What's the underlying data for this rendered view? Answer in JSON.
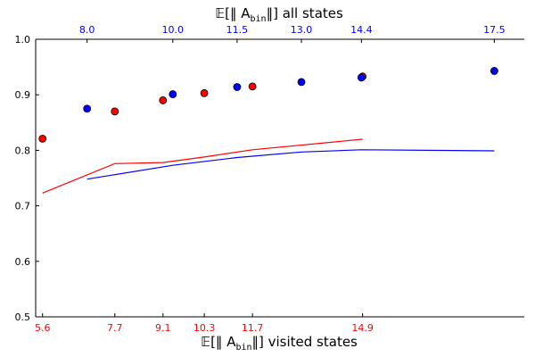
{
  "chart_data": {
    "type": "scatter",
    "colors": {
      "red": "#ff0000",
      "blue": "#0000ff",
      "axis": "#000000"
    },
    "y_axis": {
      "lim": [
        0.5,
        1.0
      ],
      "ticks": [
        0.5,
        0.6,
        0.7,
        0.8,
        0.9,
        1.0
      ],
      "tick_labels": [
        "0.5",
        "0.6",
        "0.7",
        "0.8",
        "0.9",
        "1.0"
      ]
    },
    "x_bottom": {
      "label_prefix": "𝔼[‖ A",
      "label_sub": "bin",
      "label_suffix": "‖] visited states",
      "lim": [
        5.4,
        19.6
      ],
      "ticks": [
        5.6,
        7.7,
        9.1,
        10.3,
        11.7,
        14.9
      ],
      "tick_labels": [
        "5.6",
        "7.7",
        "9.1",
        "10.3",
        "11.7",
        "14.9"
      ],
      "color": "#ff0000"
    },
    "x_top": {
      "label_prefix": "𝔼[‖ A",
      "label_sub": "bin",
      "label_suffix": "‖] all states",
      "lim": [
        6.8,
        18.2
      ],
      "ticks": [
        8.0,
        10.0,
        11.5,
        13.0,
        14.4,
        17.5
      ],
      "tick_labels": [
        "8.0",
        "10.0",
        "11.5",
        "13.0",
        "14.4",
        "17.5"
      ],
      "color": "#0000ff"
    },
    "series": [
      {
        "color": "red",
        "axis": "bottom",
        "kind": "points",
        "x": [
          5.6,
          7.7,
          9.1,
          10.3,
          11.7,
          14.9
        ],
        "y": [
          0.821,
          0.87,
          0.89,
          0.903,
          0.915,
          0.933
        ]
      },
      {
        "color": "blue",
        "axis": "top",
        "kind": "points",
        "x": [
          8.0,
          10.0,
          11.5,
          13.0,
          14.4,
          17.5
        ],
        "y": [
          0.875,
          0.901,
          0.914,
          0.923,
          0.931,
          0.943
        ]
      },
      {
        "color": "red",
        "axis": "bottom",
        "kind": "line",
        "x": [
          5.6,
          7.7,
          9.1,
          10.3,
          11.7,
          14.9
        ],
        "y": [
          0.723,
          0.776,
          0.778,
          0.788,
          0.801,
          0.82
        ]
      },
      {
        "color": "blue",
        "axis": "top",
        "kind": "line",
        "x": [
          8.0,
          10.0,
          11.5,
          13.0,
          14.4,
          17.5
        ],
        "y": [
          0.748,
          0.773,
          0.787,
          0.797,
          0.801,
          0.799
        ]
      }
    ]
  }
}
